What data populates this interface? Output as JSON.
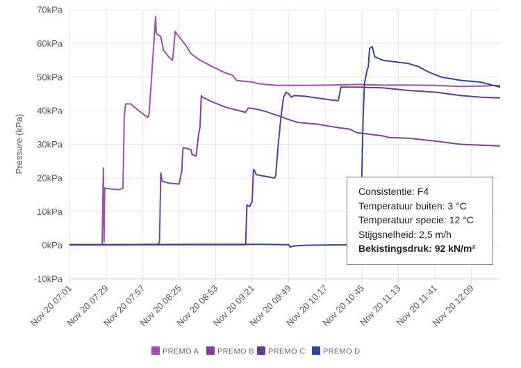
{
  "chart_data": {
    "type": "line",
    "ylabel": "Pressure (kPa)",
    "ylim": [
      -10,
      70
    ],
    "yticks": [
      "-10kPa",
      "0kPa",
      "10kPa",
      "20kPa",
      "30kPa",
      "40kPa",
      "50kPa",
      "60kPa",
      "70kPa"
    ],
    "ytick_values": [
      -10,
      0,
      10,
      20,
      30,
      40,
      50,
      60,
      70
    ],
    "xlim": [
      0,
      330
    ],
    "xticks": [
      "Nov 20 07:01",
      "Nov 20 07:29",
      "Nov 20 07:57",
      "Nov 20 08:25",
      "Nov 20 08:53",
      "Nov 20 09:21",
      "Nov 20 09:49",
      "Nov 20 10:17",
      "Nov 20 10:45",
      "Nov 20 11:13",
      "Nov 20 11:41",
      "Nov 20 12:09"
    ],
    "xtick_minutes": [
      0,
      28,
      56,
      84,
      112,
      140,
      168,
      196,
      224,
      252,
      280,
      308
    ],
    "grid": true,
    "legend_position": "bottom",
    "series": [
      {
        "name": "PREMO A",
        "color": "#a04fa6",
        "points": [
          [
            0,
            0.2
          ],
          [
            24,
            0.2
          ],
          [
            25,
            0.2
          ],
          [
            26,
            23
          ],
          [
            26.5,
            1
          ],
          [
            27,
            17
          ],
          [
            30,
            16.8
          ],
          [
            38,
            16.5
          ],
          [
            41,
            17
          ],
          [
            42,
            38
          ],
          [
            43,
            42
          ],
          [
            47,
            42
          ],
          [
            53,
            40
          ],
          [
            60,
            38
          ],
          [
            61,
            39
          ],
          [
            65,
            62
          ],
          [
            66,
            68
          ],
          [
            66.5,
            63
          ],
          [
            70,
            62
          ],
          [
            72,
            58
          ],
          [
            76,
            56
          ],
          [
            79,
            55
          ],
          [
            80,
            59
          ],
          [
            81,
            63.5
          ],
          [
            84,
            62
          ],
          [
            90,
            59
          ],
          [
            93,
            57
          ],
          [
            100,
            55
          ],
          [
            110,
            53
          ],
          [
            118,
            51.5
          ],
          [
            125,
            50.5
          ],
          [
            128,
            49
          ],
          [
            133,
            48.8
          ],
          [
            140,
            48.5
          ],
          [
            145,
            48
          ],
          [
            150,
            47.8
          ],
          [
            160,
            47.5
          ],
          [
            180,
            47.5
          ],
          [
            200,
            47.6
          ],
          [
            220,
            47.8
          ],
          [
            240,
            47.6
          ],
          [
            260,
            47.6
          ],
          [
            280,
            47.5
          ],
          [
            300,
            47.2
          ],
          [
            315,
            47.3
          ],
          [
            330,
            47.5
          ]
        ]
      },
      {
        "name": "PREMO B",
        "color": "#833f9a",
        "points": [
          [
            0,
            0.2
          ],
          [
            20,
            0.2
          ],
          [
            40,
            0.2
          ],
          [
            60,
            0.3
          ],
          [
            68,
            0.3
          ],
          [
            69,
            1
          ],
          [
            70,
            21.5
          ],
          [
            71,
            19
          ],
          [
            76,
            18.5
          ],
          [
            84,
            18.2
          ],
          [
            86,
            22
          ],
          [
            87,
            29
          ],
          [
            93,
            28.5
          ],
          [
            94,
            27
          ],
          [
            97,
            26.5
          ],
          [
            99,
            33
          ],
          [
            100,
            35
          ],
          [
            101,
            44.5
          ],
          [
            102,
            44
          ],
          [
            110,
            42.5
          ],
          [
            120,
            41
          ],
          [
            130,
            40
          ],
          [
            135,
            39.5
          ],
          [
            137,
            40.8
          ],
          [
            143,
            40.5
          ],
          [
            150,
            39.8
          ],
          [
            160,
            38.5
          ],
          [
            167,
            37.5
          ],
          [
            175,
            36.5
          ],
          [
            190,
            36
          ],
          [
            205,
            35
          ],
          [
            215,
            34.5
          ],
          [
            220,
            33.5
          ],
          [
            230,
            33
          ],
          [
            240,
            32.5
          ],
          [
            245,
            32
          ],
          [
            260,
            31.8
          ],
          [
            280,
            31
          ],
          [
            300,
            30
          ],
          [
            330,
            29.5
          ]
        ]
      },
      {
        "name": "PREMO C",
        "color": "#603a94",
        "points": [
          [
            0,
            0.2
          ],
          [
            50,
            0.2
          ],
          [
            100,
            0.2
          ],
          [
            135,
            0.2
          ],
          [
            136,
            12
          ],
          [
            138,
            11.5
          ],
          [
            140,
            13
          ],
          [
            141,
            22.5
          ],
          [
            142,
            22
          ],
          [
            143,
            21
          ],
          [
            150,
            20.5
          ],
          [
            157,
            20
          ],
          [
            158,
            20.5
          ],
          [
            160,
            30
          ],
          [
            162,
            38
          ],
          [
            164,
            44
          ],
          [
            166,
            45.5
          ],
          [
            168,
            45
          ],
          [
            170,
            44
          ],
          [
            172,
            44.5
          ],
          [
            180,
            44.3
          ],
          [
            195,
            43.5
          ],
          [
            200,
            43.2
          ],
          [
            206,
            43
          ],
          [
            208,
            47
          ],
          [
            212,
            47
          ],
          [
            220,
            47
          ],
          [
            240,
            46.8
          ],
          [
            260,
            46
          ],
          [
            280,
            45.5
          ],
          [
            300,
            44.5
          ],
          [
            315,
            44
          ],
          [
            330,
            43.8
          ]
        ]
      },
      {
        "name": "PREMO D",
        "color": "#2e479c",
        "points": [
          [
            0,
            0.2
          ],
          [
            50,
            0.2
          ],
          [
            100,
            0.3
          ],
          [
            150,
            0.3
          ],
          [
            165,
            0.2
          ],
          [
            168,
            0.2
          ],
          [
            169,
            -0.5
          ],
          [
            172,
            -0.2
          ],
          [
            180,
            0
          ],
          [
            200,
            0.1
          ],
          [
            220,
            0.2
          ],
          [
            222,
            0.2
          ],
          [
            223,
            10
          ],
          [
            224,
            20
          ],
          [
            225,
            38
          ],
          [
            226,
            48
          ],
          [
            228,
            52
          ],
          [
            229,
            53
          ],
          [
            230,
            58.5
          ],
          [
            232,
            59
          ],
          [
            234,
            56
          ],
          [
            240,
            55
          ],
          [
            250,
            54.5
          ],
          [
            260,
            54
          ],
          [
            268,
            53
          ],
          [
            275,
            51.5
          ],
          [
            285,
            50
          ],
          [
            300,
            49
          ],
          [
            315,
            48.5
          ],
          [
            330,
            47
          ]
        ]
      }
    ]
  },
  "info_box": {
    "line1": "Consistentie: F4",
    "line2": "Temperatuur buiten: 3 °C",
    "line3": "Temperatuur specie: 12 °C",
    "line4": "Stijgsnelheid: 2,5 m/h",
    "line5": "Bekistingsdruk: 92 kN/m²"
  }
}
